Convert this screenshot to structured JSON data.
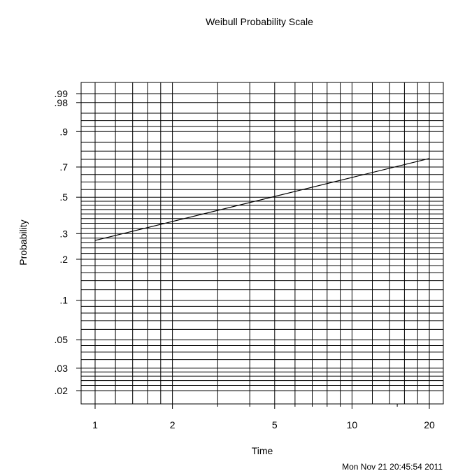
{
  "chart_data": {
    "type": "line",
    "title": "Weibull Probability Scale",
    "xlabel": "Time",
    "ylabel": "Probability",
    "x_scale": "log",
    "y_scale": "weibull",
    "xlim": [
      1,
      20
    ],
    "ylim": [
      0.02,
      0.99
    ],
    "x_ticks": [
      {
        "value": 1,
        "label": "1"
      },
      {
        "value": 2,
        "label": "2"
      },
      {
        "value": 5,
        "label": "5"
      },
      {
        "value": 10,
        "label": "10"
      },
      {
        "value": 20,
        "label": "20"
      }
    ],
    "x_minor_ticks": [
      3,
      4,
      6,
      7,
      8,
      9,
      15
    ],
    "y_ticks": [
      {
        "value": 0.02,
        "label": ".02"
      },
      {
        "value": 0.03,
        "label": ".03"
      },
      {
        "value": 0.05,
        "label": ".05"
      },
      {
        "value": 0.1,
        "label": ".1"
      },
      {
        "value": 0.2,
        "label": ".2"
      },
      {
        "value": 0.3,
        "label": ".3"
      },
      {
        "value": 0.5,
        "label": ".5"
      },
      {
        "value": 0.7,
        "label": ".7"
      },
      {
        "value": 0.9,
        "label": ".9"
      },
      {
        "value": 0.98,
        "label": ".98"
      },
      {
        "value": 0.99,
        "label": ".99"
      }
    ],
    "x_grid": [
      1,
      1.2,
      1.4,
      1.6,
      1.8,
      2,
      3,
      4,
      5,
      6,
      7,
      8,
      9,
      10,
      12,
      14,
      16,
      18,
      20
    ],
    "y_grid": [
      0.02,
      0.022,
      0.024,
      0.026,
      0.028,
      0.03,
      0.035,
      0.04,
      0.045,
      0.05,
      0.06,
      0.07,
      0.08,
      0.09,
      0.1,
      0.12,
      0.14,
      0.16,
      0.18,
      0.2,
      0.22,
      0.24,
      0.26,
      0.28,
      0.3,
      0.325,
      0.35,
      0.375,
      0.4,
      0.425,
      0.45,
      0.475,
      0.5,
      0.55,
      0.6,
      0.65,
      0.7,
      0.75,
      0.8,
      0.85,
      0.9,
      0.92,
      0.94,
      0.96,
      0.98,
      0.99
    ],
    "grid": true,
    "series": [
      {
        "x": [
          1,
          20
        ],
        "y": [
          0.27,
          0.755
        ]
      }
    ]
  },
  "footer": {
    "timestamp": "Mon Nov 21 20:45:54 2011"
  }
}
